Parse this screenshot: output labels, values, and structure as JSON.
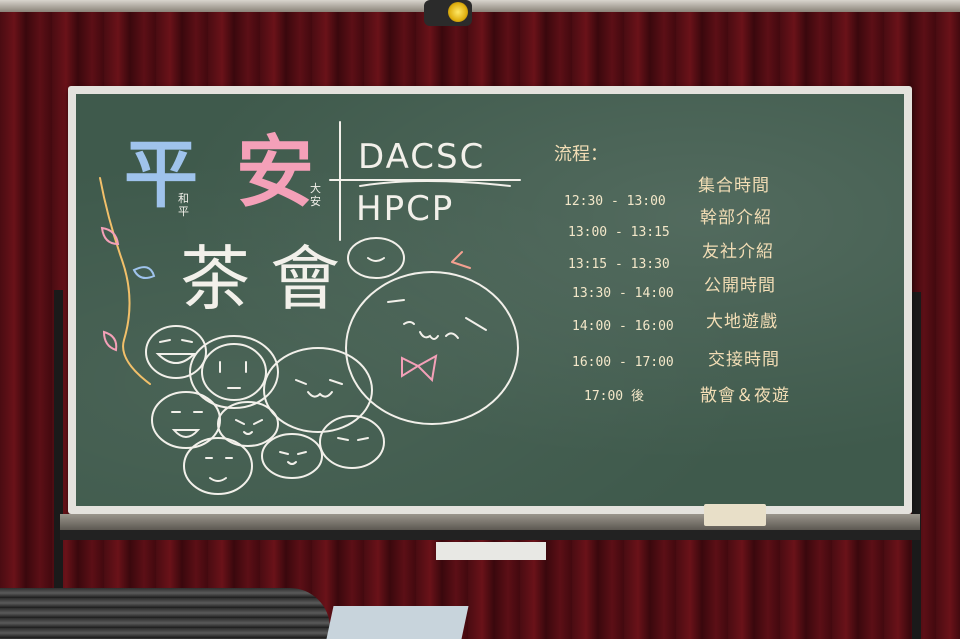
{
  "board": {
    "title_ping": "平",
    "title_an": "安",
    "title_cha": "茶",
    "title_hui": "會",
    "small_peace": "和平",
    "small_daan": "大安",
    "org1": "DACSC",
    "org2": "HPCP",
    "schedule_heading": "流程："
  },
  "schedule": [
    {
      "time": "12:30 - 13:00",
      "event": "集合時間"
    },
    {
      "time": "13:00 - 13:15",
      "event": "幹部介紹"
    },
    {
      "time": "13:15 - 13:30",
      "event": "友社介紹"
    },
    {
      "time": "13:30 - 14:00",
      "event": "公開時間"
    },
    {
      "time": "14:00 - 16:00",
      "event": "大地遊戲"
    },
    {
      "time": "16:00 - 17:00",
      "event": "交接時間"
    },
    {
      "time": "17:00 後",
      "event": "散會＆夜遊"
    }
  ],
  "colors": {
    "board": "#3f5a4c",
    "chalk_blue": "#9fc3ec",
    "chalk_pink": "#f4a0b8",
    "chalk_white": "#f2f0ea",
    "chalk_yellow": "#f2ddb5",
    "curtain": "#5c0f16"
  }
}
